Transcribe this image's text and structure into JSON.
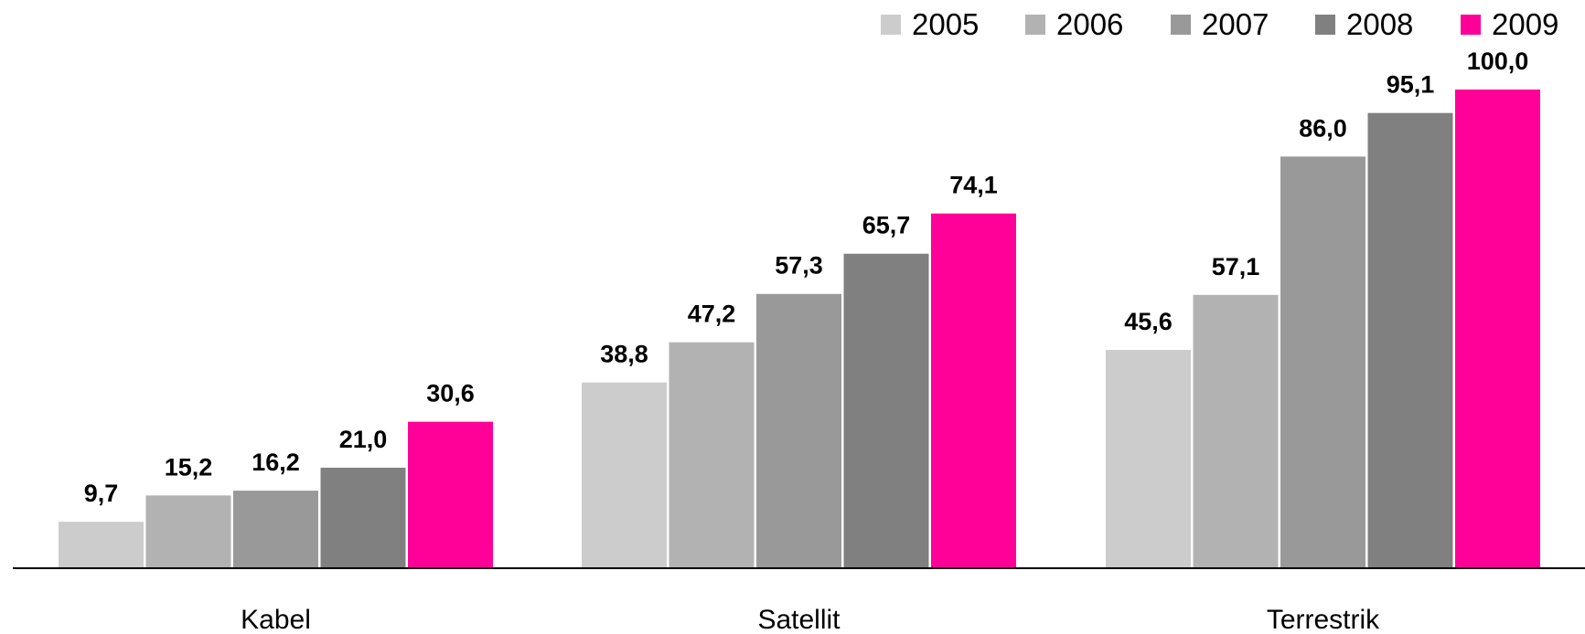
{
  "chart_data": {
    "type": "bar",
    "categories": [
      "Kabel",
      "Satellit",
      "Terrestrik"
    ],
    "series": [
      {
        "name": "2005",
        "color": "#cccccc",
        "values": [
          9.7,
          38.8,
          45.6
        ],
        "labels": [
          "9,7",
          "38,8",
          "45,6"
        ]
      },
      {
        "name": "2006",
        "color": "#b2b2b2",
        "values": [
          15.2,
          47.2,
          57.1
        ],
        "labels": [
          "15,2",
          "47,2",
          "57,1"
        ]
      },
      {
        "name": "2007",
        "color": "#999999",
        "values": [
          16.2,
          57.3,
          86.0
        ],
        "labels": [
          "16,2",
          "57,3",
          "86,0"
        ]
      },
      {
        "name": "2008",
        "color": "#808080",
        "values": [
          21.0,
          65.7,
          95.1
        ],
        "labels": [
          "21,0",
          "65,7",
          "95,1"
        ]
      },
      {
        "name": "2009",
        "color": "#ff0099",
        "values": [
          30.6,
          74.1,
          100.0
        ],
        "labels": [
          "30,6",
          "74,1",
          "100,0"
        ]
      }
    ],
    "title": "",
    "xlabel": "",
    "ylabel": "",
    "ylim": [
      0,
      100
    ],
    "grid": false,
    "legend": "top-right"
  }
}
